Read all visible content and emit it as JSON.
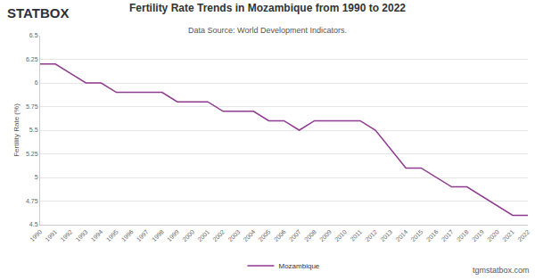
{
  "chart_data": {
    "type": "line",
    "title": "Fertility Rate Trends in Mozambique from 1990 to 2022",
    "subtitle": "Data Source: World Development Indicators.",
    "y_label": "Fertility Rate (%)",
    "x": [
      1990,
      1991,
      1992,
      1993,
      1994,
      1995,
      1996,
      1997,
      1998,
      1999,
      2000,
      2001,
      2002,
      2003,
      2004,
      2005,
      2006,
      2007,
      2008,
      2009,
      2010,
      2011,
      2012,
      2013,
      2014,
      2015,
      2016,
      2017,
      2018,
      2019,
      2020,
      2021,
      2022
    ],
    "series": [
      {
        "name": "Mozambique",
        "color": "#8e3a8e",
        "values": [
          6.2,
          6.2,
          6.1,
          6.0,
          6.0,
          5.9,
          5.9,
          5.9,
          5.9,
          5.8,
          5.8,
          5.8,
          5.7,
          5.7,
          5.7,
          5.6,
          5.6,
          5.5,
          5.6,
          5.6,
          5.6,
          5.6,
          5.5,
          5.3,
          5.1,
          5.1,
          5.0,
          4.9,
          4.9,
          4.8,
          4.7,
          4.6,
          4.6
        ]
      }
    ],
    "xlim": [
      1990,
      2022
    ],
    "xticks": [
      1990,
      1991,
      1992,
      1993,
      1994,
      1995,
      1996,
      1997,
      1998,
      1999,
      2000,
      2001,
      2002,
      2003,
      2004,
      2005,
      2006,
      2007,
      2008,
      2009,
      2010,
      2011,
      2012,
      2013,
      2014,
      2015,
      2016,
      2017,
      2018,
      2019,
      2020,
      2021,
      2022
    ],
    "ylim": [
      4.5,
      6.5
    ],
    "yticks": [
      4.5,
      4.75,
      5,
      5.25,
      5.5,
      5.75,
      6,
      6.25,
      6.5
    ],
    "grid": true,
    "legend": "bottom",
    "annotations": [
      {
        "text": "STATBOX"
      },
      {
        "text": "tgmstatbox.com"
      }
    ]
  }
}
